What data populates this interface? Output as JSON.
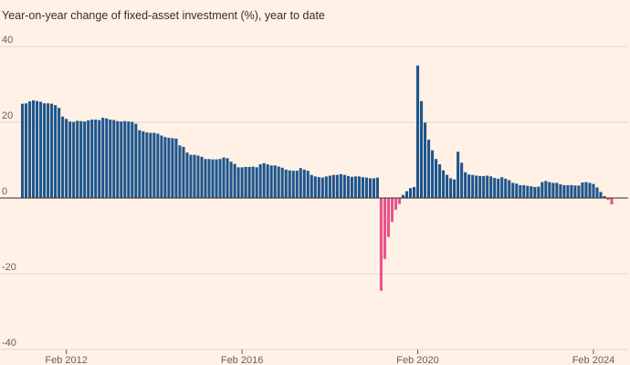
{
  "chart_data": {
    "type": "bar",
    "title": "Year-on-year change of fixed-asset investment (%), year to date",
    "xlabel": "",
    "ylabel": "",
    "ylim": [
      -40,
      40
    ],
    "yticks": [
      -40,
      -20,
      0,
      20,
      40
    ],
    "xticks": [
      "Feb 2012",
      "Feb 2016",
      "Feb 2020",
      "Feb 2024"
    ],
    "grid": true,
    "colors": {
      "positive": "#1e558c",
      "negative": "#e8538c",
      "grid": "#e0d6cc",
      "zero": "#33302e"
    },
    "first_period": "Feb 2011",
    "frequency": "monthly",
    "values": [
      24.9,
      25.0,
      25.5,
      25.8,
      25.6,
      25.4,
      25.0,
      25.0,
      24.9,
      24.5,
      23.8,
      21.5,
      20.9,
      20.2,
      20.1,
      20.4,
      20.3,
      20.2,
      20.5,
      20.7,
      20.7,
      20.6,
      21.2,
      21.0,
      20.7,
      20.6,
      20.3,
      20.2,
      20.3,
      20.2,
      20.1,
      19.6,
      17.9,
      17.6,
      17.3,
      17.2,
      17.2,
      17.0,
      16.5,
      16.1,
      15.9,
      15.8,
      15.7,
      13.9,
      13.5,
      12.0,
      11.4,
      11.4,
      11.2,
      10.9,
      10.3,
      10.3,
      10.2,
      10.2,
      10.3,
      10.7,
      10.5,
      9.6,
      9.0,
      8.1,
      8.1,
      8.2,
      8.2,
      8.3,
      8.1,
      8.9,
      9.2,
      8.9,
      8.6,
      8.6,
      8.3,
      8.0,
      7.5,
      7.3,
      7.2,
      7.2,
      7.9,
      7.5,
      7.2,
      6.1,
      5.7,
      5.5,
      5.4,
      5.7,
      5.9,
      6.1,
      6.1,
      6.3,
      6.1,
      5.8,
      5.6,
      5.7,
      5.7,
      5.5,
      5.4,
      5.2,
      5.2,
      5.4,
      -24.5,
      -16.1,
      -10.3,
      -6.3,
      -3.1,
      -1.6,
      0.8,
      1.8,
      2.6,
      2.9,
      35.0,
      25.6,
      19.9,
      15.4,
      12.6,
      10.3,
      8.9,
      7.3,
      6.1,
      5.2,
      4.9,
      12.2,
      9.3,
      6.8,
      6.2,
      6.1,
      5.9,
      5.8,
      5.8,
      5.9,
      5.7,
      5.3,
      5.1,
      5.5,
      5.1,
      4.7,
      4.0,
      3.8,
      3.4,
      3.4,
      3.2,
      3.1,
      2.9,
      3.0,
      4.2,
      4.5,
      4.2,
      4.0,
      4.0,
      3.6,
      3.4,
      3.4,
      3.4,
      3.3,
      3.3,
      4.1,
      4.2,
      4.0,
      3.7,
      2.8,
      1.6,
      0.5,
      -0.5,
      -1.7
    ]
  }
}
